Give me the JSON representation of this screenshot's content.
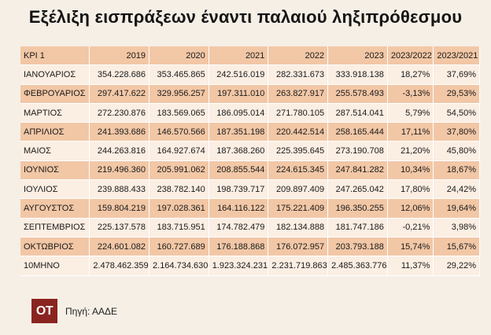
{
  "title": "Εξέλιξη εισπράξεων έναντι παλαιού ληξιπρόθεσμου",
  "table": {
    "headers": [
      "ΚΡΙ 1",
      "2019",
      "2020",
      "2021",
      "2022",
      "2023",
      "2023/2022",
      "2023/2021"
    ],
    "rows": [
      [
        "ΙΑΝΟΥΑΡΙΟΣ",
        "354.228.686",
        "353.465.865",
        "242.516.019",
        "282.331.673",
        "333.918.138",
        "18,27%",
        "37,69%"
      ],
      [
        "ΦΕΒΡΟΥΑΡΙΟΣ",
        "297.417.622",
        "329.956.257",
        "197.311.010",
        "263.827.917",
        "255.578.493",
        "-3,13%",
        "29,53%"
      ],
      [
        "ΜΑΡΤΙΟΣ",
        "272.230.876",
        "183.569.065",
        "186.095.014",
        "271.780.105",
        "287.514.041",
        "5,79%",
        "54,50%"
      ],
      [
        "ΑΠΡΙΛΙΟΣ",
        "241.393.686",
        "146.570.566",
        "187.351.198",
        "220.442.514",
        "258.165.444",
        "17,11%",
        "37,80%"
      ],
      [
        "ΜΑΙΟΣ",
        "244.263.816",
        "164.927.674",
        "187.368.260",
        "225.395.645",
        "273.190.708",
        "21,20%",
        "45,80%"
      ],
      [
        "ΙΟΥΝΙΟΣ",
        "219.496.360",
        "205.991.062",
        "208.855.544",
        "224.615.345",
        "247.841.282",
        "10,34%",
        "18,67%"
      ],
      [
        "ΙΟΥΛΙΟΣ",
        "239.888.433",
        "238.782.140",
        "198.739.717",
        "209.897.409",
        "247.265.042",
        "17,80%",
        "24,42%"
      ],
      [
        "ΑΥΓΟΥΣΤΟΣ",
        "159.804.219",
        "197.028.361",
        "164.116.122",
        "175.221.409",
        "196.350.255",
        "12,06%",
        "19,64%"
      ],
      [
        "ΣΕΠΤΕΜΒΡΙΟΣ",
        "225.137.578",
        "183.715.951",
        "174.782.479",
        "182.134.888",
        "181.747.186",
        "-0,21%",
        "3,98%"
      ],
      [
        "ΟΚΤΩΒΡΙΟΣ",
        "224.601.082",
        "160.727.689",
        "176.188.868",
        "176.072.957",
        "203.793.188",
        "15,74%",
        "15,67%"
      ],
      [
        "10ΜΗΝΟ",
        "2.478.462.359",
        "2.164.734.630",
        "1.923.324.231",
        "2.231.719.863",
        "2.485.363.776",
        "11,37%",
        "29,22%"
      ]
    ]
  },
  "logo": "OT",
  "source": "Πηγή: ΑΑΔΕ",
  "colors": {
    "header_row": "#f2c7a6",
    "light_row": "#fbeee3",
    "dark_row": "#f2c7a6",
    "logo_bg": "#8a2420",
    "page_bg": "#f6efe6"
  }
}
